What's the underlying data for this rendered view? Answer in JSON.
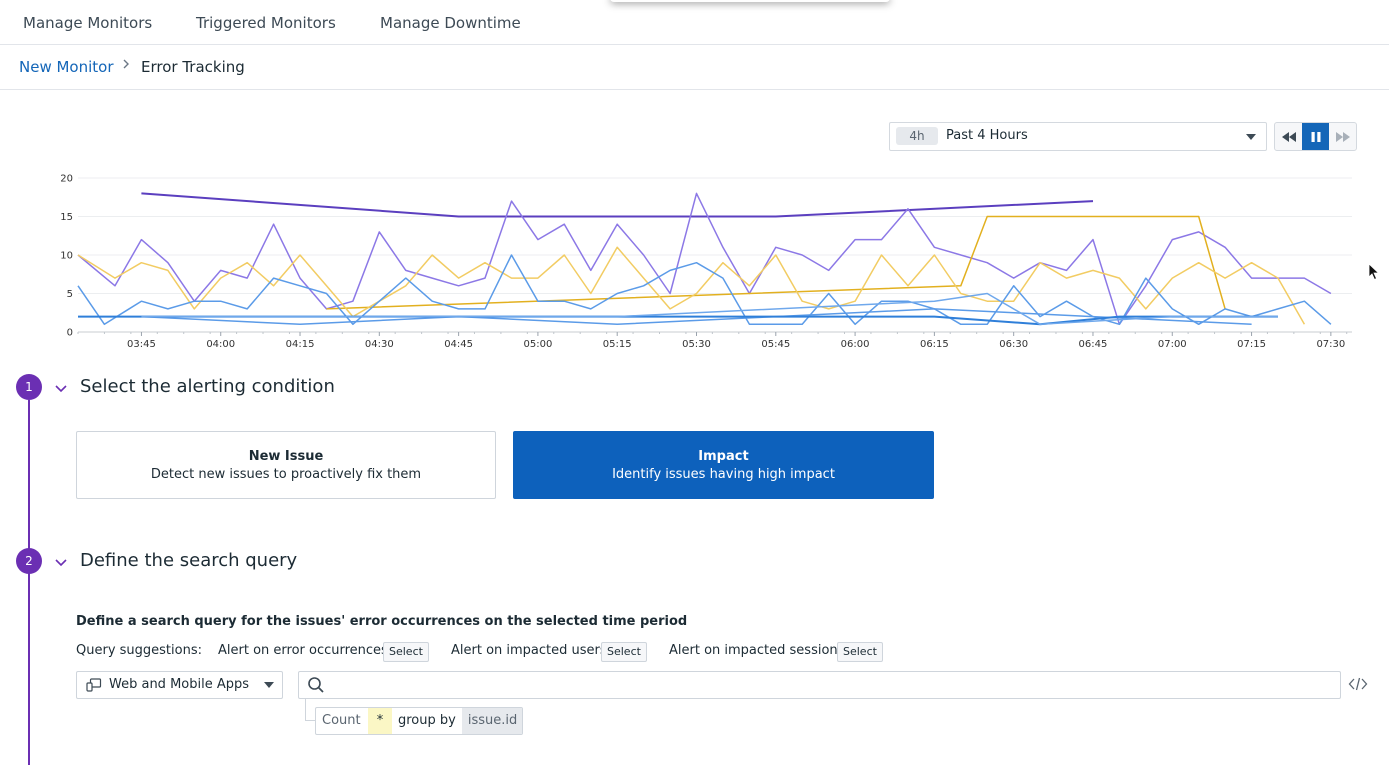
{
  "topnav": {
    "tabs": [
      {
        "label": "Manage Monitors"
      },
      {
        "label": "Triggered Monitors"
      },
      {
        "label": "Manage Downtime"
      }
    ]
  },
  "breadcrumb": {
    "parent": "New Monitor",
    "current": "Error Tracking"
  },
  "time_selector": {
    "badge": "4h",
    "label": "Past 4 Hours"
  },
  "playback": {
    "icons": [
      "rewind-icon",
      "pause-icon",
      "fast-forward-icon"
    ],
    "active": "pause-icon"
  },
  "colors": {
    "accent": "#1466b8",
    "step": "#6b2fb3",
    "series_dark_purple": "#5b3fbf",
    "series_purple": "#8c78e6",
    "series_gold": "#e2b01f",
    "series_light_gold": "#f2cc63",
    "series_blue": "#5b9be8",
    "series_steel_blue": "#2f7fd9"
  },
  "chart_data": {
    "type": "line",
    "x_ticks": [
      "03:45",
      "04:00",
      "04:15",
      "04:30",
      "04:45",
      "05:00",
      "05:15",
      "05:30",
      "05:45",
      "06:00",
      "06:15",
      "06:30",
      "06:45",
      "07:00",
      "07:15",
      "07:30"
    ],
    "y_ticks": [
      "0",
      "5",
      "10",
      "15",
      "20"
    ],
    "ylim": [
      0,
      20
    ],
    "xlim": [
      "03:33",
      "07:34"
    ],
    "grid": true,
    "series": [
      {
        "color": "#5b3fbf",
        "points": [
          [
            "03:45",
            18
          ],
          [
            "04:45",
            15
          ],
          [
            "05:45",
            15
          ],
          [
            "06:45",
            17
          ]
        ]
      },
      {
        "color": "#8c78e6",
        "points": [
          [
            "03:33",
            10
          ],
          [
            "03:40",
            6
          ],
          [
            "03:45",
            12
          ],
          [
            "03:50",
            9
          ],
          [
            "03:55",
            4
          ],
          [
            "04:00",
            8
          ],
          [
            "04:05",
            7
          ],
          [
            "04:10",
            14
          ],
          [
            "04:15",
            7
          ],
          [
            "04:20",
            3
          ],
          [
            "04:25",
            4
          ],
          [
            "04:30",
            13
          ],
          [
            "04:35",
            8
          ],
          [
            "04:40",
            7
          ],
          [
            "04:45",
            6
          ],
          [
            "04:50",
            7
          ],
          [
            "04:55",
            17
          ],
          [
            "05:00",
            12
          ],
          [
            "05:05",
            14
          ],
          [
            "05:10",
            8
          ],
          [
            "05:15",
            14
          ],
          [
            "05:20",
            10
          ],
          [
            "05:25",
            5
          ],
          [
            "05:30",
            18
          ],
          [
            "05:35",
            11
          ],
          [
            "05:40",
            5
          ],
          [
            "05:45",
            11
          ],
          [
            "05:50",
            10
          ],
          [
            "05:55",
            8
          ],
          [
            "06:00",
            12
          ],
          [
            "06:05",
            12
          ],
          [
            "06:10",
            16
          ],
          [
            "06:15",
            11
          ],
          [
            "06:20",
            10
          ],
          [
            "06:25",
            9
          ],
          [
            "06:30",
            7
          ],
          [
            "06:35",
            9
          ],
          [
            "06:40",
            8
          ],
          [
            "06:45",
            12
          ],
          [
            "06:50",
            1
          ],
          [
            "06:55",
            6
          ],
          [
            "07:00",
            12
          ],
          [
            "07:05",
            13
          ],
          [
            "07:10",
            11
          ],
          [
            "07:15",
            7
          ],
          [
            "07:20",
            7
          ],
          [
            "07:25",
            7
          ],
          [
            "07:30",
            5
          ]
        ]
      },
      {
        "color": "#e2b01f",
        "points": [
          [
            "04:20",
            3
          ],
          [
            "06:20",
            6
          ],
          [
            "06:25",
            15
          ],
          [
            "07:05",
            15
          ],
          [
            "07:10",
            3
          ]
        ]
      },
      {
        "color": "#f2cc63",
        "points": [
          [
            "03:33",
            10
          ],
          [
            "03:40",
            7
          ],
          [
            "03:45",
            9
          ],
          [
            "03:50",
            8
          ],
          [
            "03:55",
            3
          ],
          [
            "04:00",
            7
          ],
          [
            "04:05",
            9
          ],
          [
            "04:10",
            6
          ],
          [
            "04:15",
            10
          ],
          [
            "04:20",
            6
          ],
          [
            "04:25",
            2
          ],
          [
            "04:30",
            4
          ],
          [
            "04:35",
            6
          ],
          [
            "04:40",
            10
          ],
          [
            "04:45",
            7
          ],
          [
            "04:50",
            9
          ],
          [
            "04:55",
            7
          ],
          [
            "05:00",
            7
          ],
          [
            "05:05",
            10
          ],
          [
            "05:10",
            5
          ],
          [
            "05:15",
            11
          ],
          [
            "05:20",
            7
          ],
          [
            "05:25",
            3
          ],
          [
            "05:30",
            5
          ],
          [
            "05:35",
            9
          ],
          [
            "05:40",
            6
          ],
          [
            "05:45",
            10
          ],
          [
            "05:50",
            4
          ],
          [
            "05:55",
            3
          ],
          [
            "06:00",
            4
          ],
          [
            "06:05",
            10
          ],
          [
            "06:10",
            6
          ],
          [
            "06:15",
            10
          ],
          [
            "06:20",
            5
          ],
          [
            "06:25",
            4
          ],
          [
            "06:30",
            4
          ],
          [
            "06:35",
            9
          ],
          [
            "06:40",
            7
          ],
          [
            "06:45",
            8
          ],
          [
            "06:50",
            7
          ],
          [
            "06:55",
            3
          ],
          [
            "07:00",
            7
          ],
          [
            "07:05",
            9
          ],
          [
            "07:10",
            7
          ],
          [
            "07:15",
            9
          ],
          [
            "07:20",
            7
          ],
          [
            "07:25",
            1
          ]
        ]
      },
      {
        "color": "#5b9be8",
        "points": [
          [
            "03:33",
            6
          ],
          [
            "03:38",
            1
          ],
          [
            "03:45",
            4
          ],
          [
            "03:50",
            3
          ],
          [
            "03:55",
            4
          ],
          [
            "04:00",
            4
          ],
          [
            "04:05",
            3
          ],
          [
            "04:10",
            7
          ],
          [
            "04:15",
            6
          ],
          [
            "04:20",
            5
          ],
          [
            "04:25",
            1
          ],
          [
            "04:30",
            4
          ],
          [
            "04:35",
            7
          ],
          [
            "04:40",
            4
          ],
          [
            "04:45",
            3
          ],
          [
            "04:50",
            3
          ],
          [
            "04:55",
            10
          ],
          [
            "05:00",
            4
          ],
          [
            "05:05",
            4
          ],
          [
            "05:10",
            3
          ],
          [
            "05:15",
            5
          ],
          [
            "05:20",
            6
          ],
          [
            "05:25",
            8
          ],
          [
            "05:30",
            9
          ],
          [
            "05:35",
            7
          ],
          [
            "05:40",
            1
          ],
          [
            "05:45",
            1
          ],
          [
            "05:50",
            1
          ],
          [
            "05:55",
            5
          ],
          [
            "06:00",
            1
          ],
          [
            "06:05",
            4
          ],
          [
            "06:10",
            4
          ],
          [
            "06:15",
            3
          ],
          [
            "06:20",
            1
          ],
          [
            "06:25",
            1
          ],
          [
            "06:30",
            6
          ],
          [
            "06:35",
            2
          ],
          [
            "06:40",
            4
          ],
          [
            "06:45",
            2
          ],
          [
            "06:50",
            1
          ],
          [
            "06:55",
            7
          ],
          [
            "07:00",
            3
          ],
          [
            "07:05",
            1
          ],
          [
            "07:10",
            3
          ],
          [
            "07:15",
            2
          ],
          [
            "07:20",
            3
          ],
          [
            "07:25",
            4
          ],
          [
            "07:30",
            1
          ]
        ]
      },
      {
        "color": "#5b9be8",
        "points": [
          [
            "03:45",
            2
          ],
          [
            "04:15",
            1
          ],
          [
            "04:45",
            2
          ],
          [
            "05:15",
            1
          ],
          [
            "05:45",
            2
          ],
          [
            "06:15",
            3
          ],
          [
            "06:45",
            2
          ],
          [
            "07:15",
            1
          ]
        ]
      },
      {
        "color": "#2f7fd9",
        "points": [
          [
            "03:33",
            2
          ],
          [
            "04:45",
            2
          ],
          [
            "06:15",
            2
          ],
          [
            "06:35",
            1
          ],
          [
            "06:50",
            2
          ],
          [
            "07:20",
            2
          ]
        ]
      },
      {
        "color": "#6fa8ec",
        "points": [
          [
            "03:45",
            2
          ],
          [
            "05:15",
            2
          ],
          [
            "06:15",
            4
          ],
          [
            "06:25",
            5
          ],
          [
            "06:35",
            1
          ],
          [
            "07:00",
            2
          ],
          [
            "07:20",
            2
          ]
        ]
      }
    ]
  },
  "steps": [
    {
      "number": "1",
      "title": "Select the alerting condition"
    },
    {
      "number": "2",
      "title": "Define the search query"
    }
  ],
  "cards": [
    {
      "title": "New Issue",
      "description": "Detect new issues to proactively fix them",
      "selected": false
    },
    {
      "title": "Impact",
      "description": "Identify issues having high impact",
      "selected": true
    }
  ],
  "query": {
    "description": "Define a search query for the issues' error occurrences on the selected time period",
    "suggestions_label": "Query suggestions:",
    "suggestions": [
      {
        "label": "Alert on error occurrences",
        "button": "Select"
      },
      {
        "label": "Alert on impacted users",
        "button": "Select"
      },
      {
        "label": "Alert on impacted sessions",
        "button": "Select"
      }
    ],
    "source": "Web and Mobile Apps",
    "search_value": "",
    "aggregation": {
      "function": "Count",
      "measure": "*",
      "group_label": "group by",
      "group_field": "issue.id"
    }
  }
}
